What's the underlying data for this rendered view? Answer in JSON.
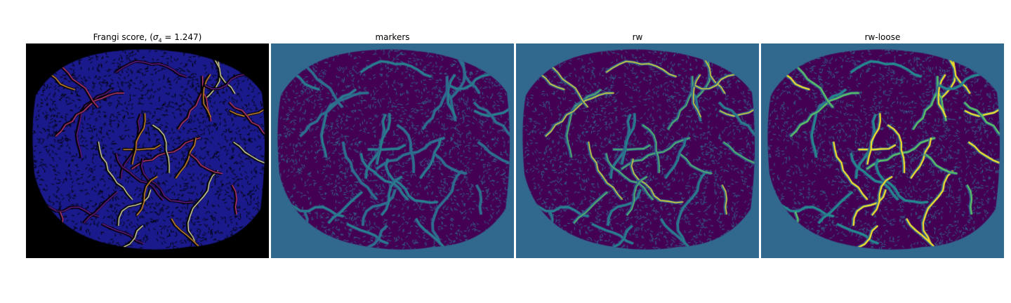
{
  "panels": [
    {
      "title_prefix": "Frangi score, (",
      "title_sigma": "σ",
      "title_subscript": "4",
      "title_suffix": " = 1.247)",
      "background": "#000000",
      "cell_color": "#1a1a8c",
      "vessel_color": "#000000",
      "highlight_colors": [
        "#7a1fa2",
        "#e0448a",
        "#fca636",
        "#ffffbf"
      ]
    },
    {
      "title": "markers",
      "background": "#31688e",
      "cell_color": "#440154",
      "vessel_color": "#31688e",
      "highlight_colors": [
        "#21918c",
        "#2a788e"
      ]
    },
    {
      "title": "rw",
      "background": "#31688e",
      "cell_color": "#440154",
      "vessel_color": "#31688e",
      "highlight_colors": [
        "#21918c",
        "#5ec962",
        "#fde725"
      ]
    },
    {
      "title": "rw-loose",
      "background": "#31688e",
      "cell_color": "#440154",
      "vessel_color": "#31688e",
      "highlight_colors": [
        "#21918c",
        "#5ec962",
        "#fde725",
        "#fde725"
      ]
    }
  ]
}
